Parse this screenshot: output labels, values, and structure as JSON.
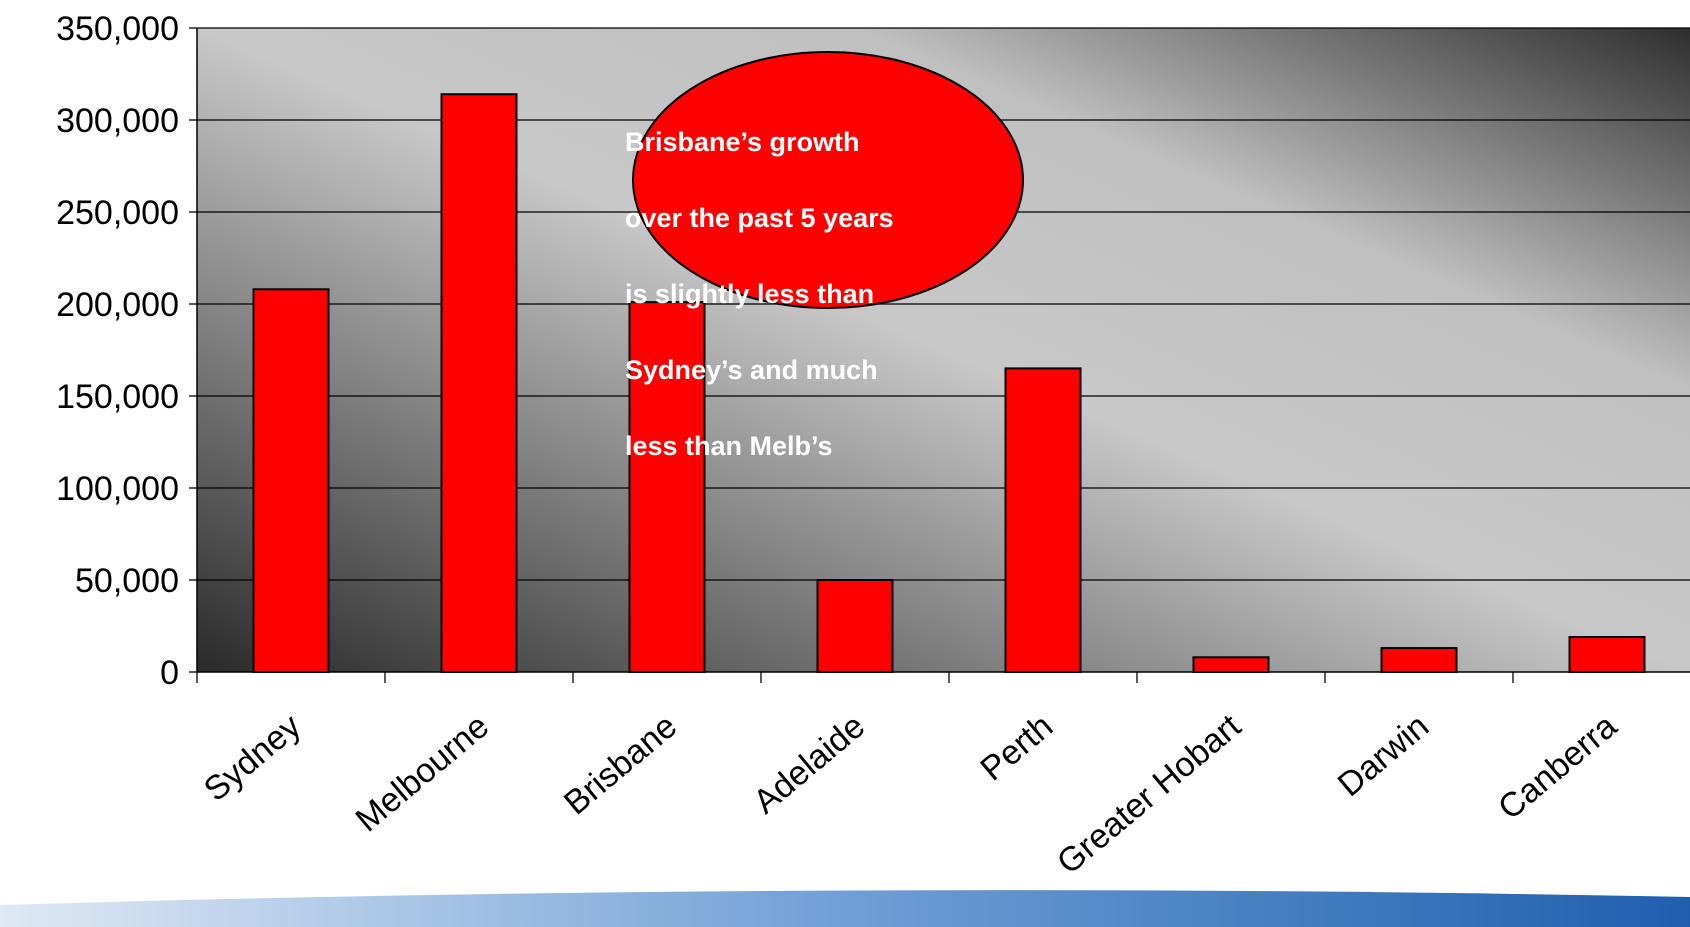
{
  "colors": {
    "bar_fill": "#ff0000",
    "bar_stroke": "#000000",
    "annotation_fill": "#ff0000",
    "annotation_text": "#ffffff",
    "bottom_band": "#1f5fae"
  },
  "annotation": {
    "lines": [
      "Brisbane’s growth",
      "over the past 5 years",
      "is slightly less than",
      "Sydney’s and much",
      "less than Melb’s"
    ]
  },
  "chart_data": {
    "type": "bar",
    "categories": [
      "Sydney",
      "Melbourne",
      "Brisbane",
      "Adelaide",
      "Perth",
      "Greater Hobart",
      "Darwin",
      "Canberra"
    ],
    "values": [
      208000,
      314000,
      201000,
      50000,
      165000,
      8000,
      13000,
      19000
    ],
    "title": "",
    "xlabel": "",
    "ylabel": "",
    "ylim": [
      0,
      350000
    ],
    "yticks": [
      0,
      50000,
      100000,
      150000,
      200000,
      250000,
      300000,
      350000
    ],
    "ytick_labels": [
      "0",
      "50,000",
      "100,000",
      "150,000",
      "200,000",
      "250,000",
      "300,000",
      "350,000"
    ],
    "grid": true,
    "legend": "none"
  }
}
